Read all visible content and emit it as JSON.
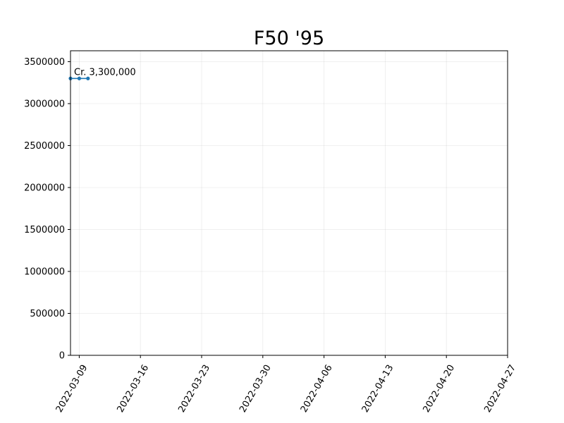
{
  "chart_data": {
    "type": "line",
    "title": "F50 '95",
    "xlabel": "",
    "ylabel": "",
    "x_type": "date",
    "xlim": [
      "2022-03-08",
      "2022-04-27"
    ],
    "ylim": [
      0,
      3630000
    ],
    "x_ticks": [
      "2022-03-09",
      "2022-03-16",
      "2022-03-23",
      "2022-03-30",
      "2022-04-06",
      "2022-04-13",
      "2022-04-20",
      "2022-04-27"
    ],
    "y_ticks": [
      0,
      500000,
      1000000,
      1500000,
      2000000,
      2500000,
      3000000,
      3500000
    ],
    "grid": true,
    "series": [
      {
        "color": "#1f77b4",
        "marker": "circle",
        "x": [
          "2022-03-08",
          "2022-03-09",
          "2022-03-10"
        ],
        "values": [
          3300000,
          3300000,
          3300000
        ]
      }
    ],
    "annotations": [
      {
        "text": "Cr. 3,300,000",
        "x": "2022-03-08",
        "y": 3300000
      }
    ]
  }
}
